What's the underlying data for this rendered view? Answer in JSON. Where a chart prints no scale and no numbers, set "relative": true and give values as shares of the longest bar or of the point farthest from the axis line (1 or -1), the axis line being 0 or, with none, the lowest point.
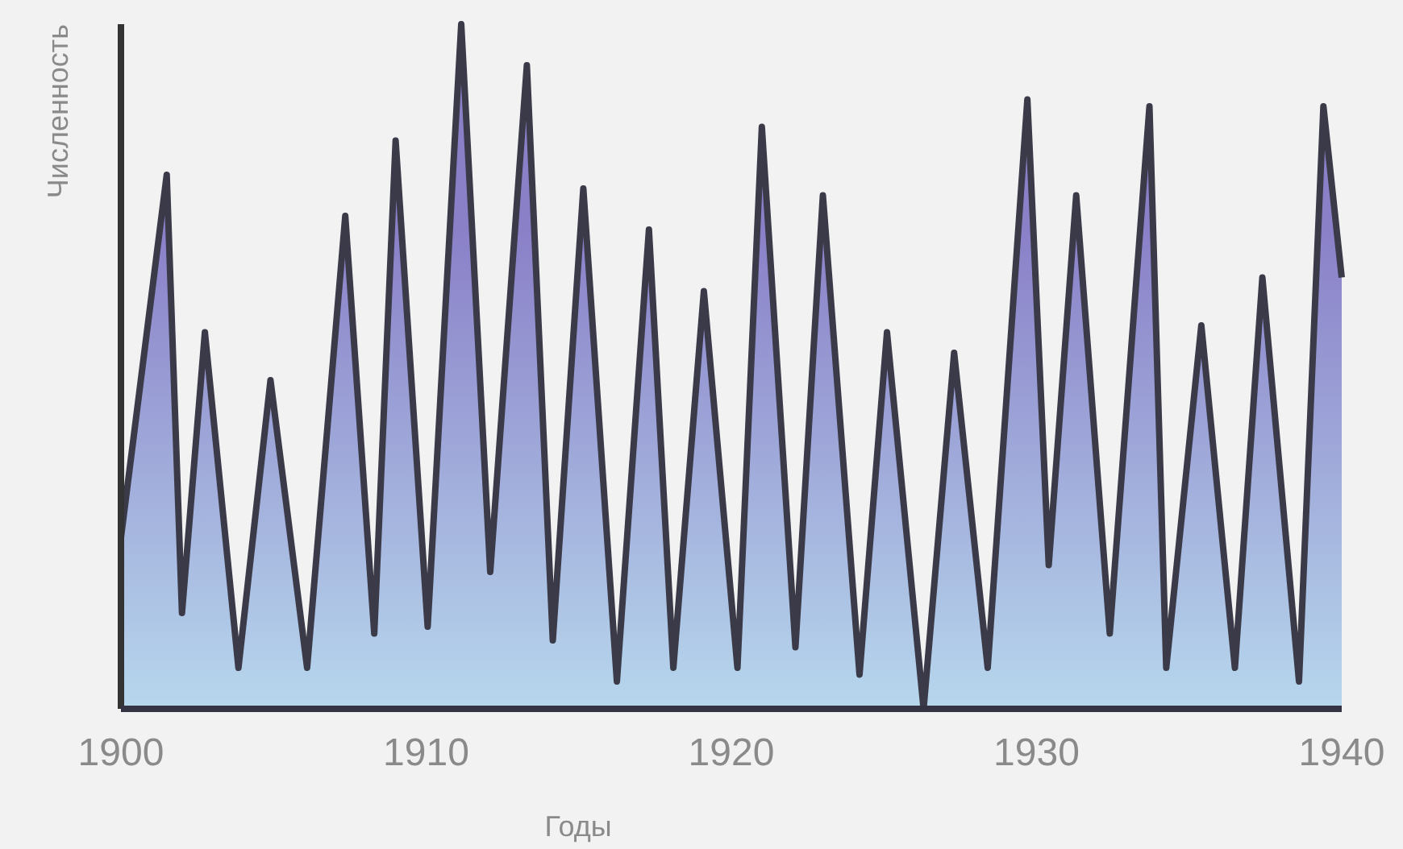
{
  "chart_data": {
    "type": "area",
    "xlabel": "Годы",
    "ylabel": "Численность",
    "relative": true,
    "xlim": [
      1900,
      1940
    ],
    "xticks": [
      1900,
      1910,
      1920,
      1930,
      1940
    ],
    "series": [
      {
        "color": "#8a80c8",
        "x": [
          1900,
          1901.5,
          1902,
          1902.75,
          1903.85,
          1904.9,
          1906.1,
          1907.35,
          1908.3,
          1909,
          1910.05,
          1911.15,
          1912.1,
          1913.3,
          1914.15,
          1915.15,
          1916.25,
          1917.3,
          1918.1,
          1919.1,
          1920.2,
          1921,
          1922.1,
          1923,
          1924.2,
          1925.1,
          1926.3,
          1927.3,
          1928.4,
          1929.7,
          1930.4,
          1931.3,
          1932.4,
          1933.7,
          1934.25,
          1935.4,
          1936.5,
          1937.4,
          1938.6,
          1939.4,
          1940
        ],
        "values": [
          0.25,
          0.78,
          0.14,
          0.55,
          0.06,
          0.48,
          0.06,
          0.72,
          0.11,
          0.83,
          0.12,
          1.0,
          0.2,
          0.94,
          0.1,
          0.76,
          0.04,
          0.7,
          0.06,
          0.61,
          0.06,
          0.85,
          0.09,
          0.75,
          0.05,
          0.55,
          0,
          0.52,
          0.06,
          0.89,
          0.21,
          0.75,
          0.11,
          0.88,
          0.06,
          0.56,
          0.06,
          0.63,
          0.04,
          0.88,
          0.63
        ]
      }
    ]
  }
}
